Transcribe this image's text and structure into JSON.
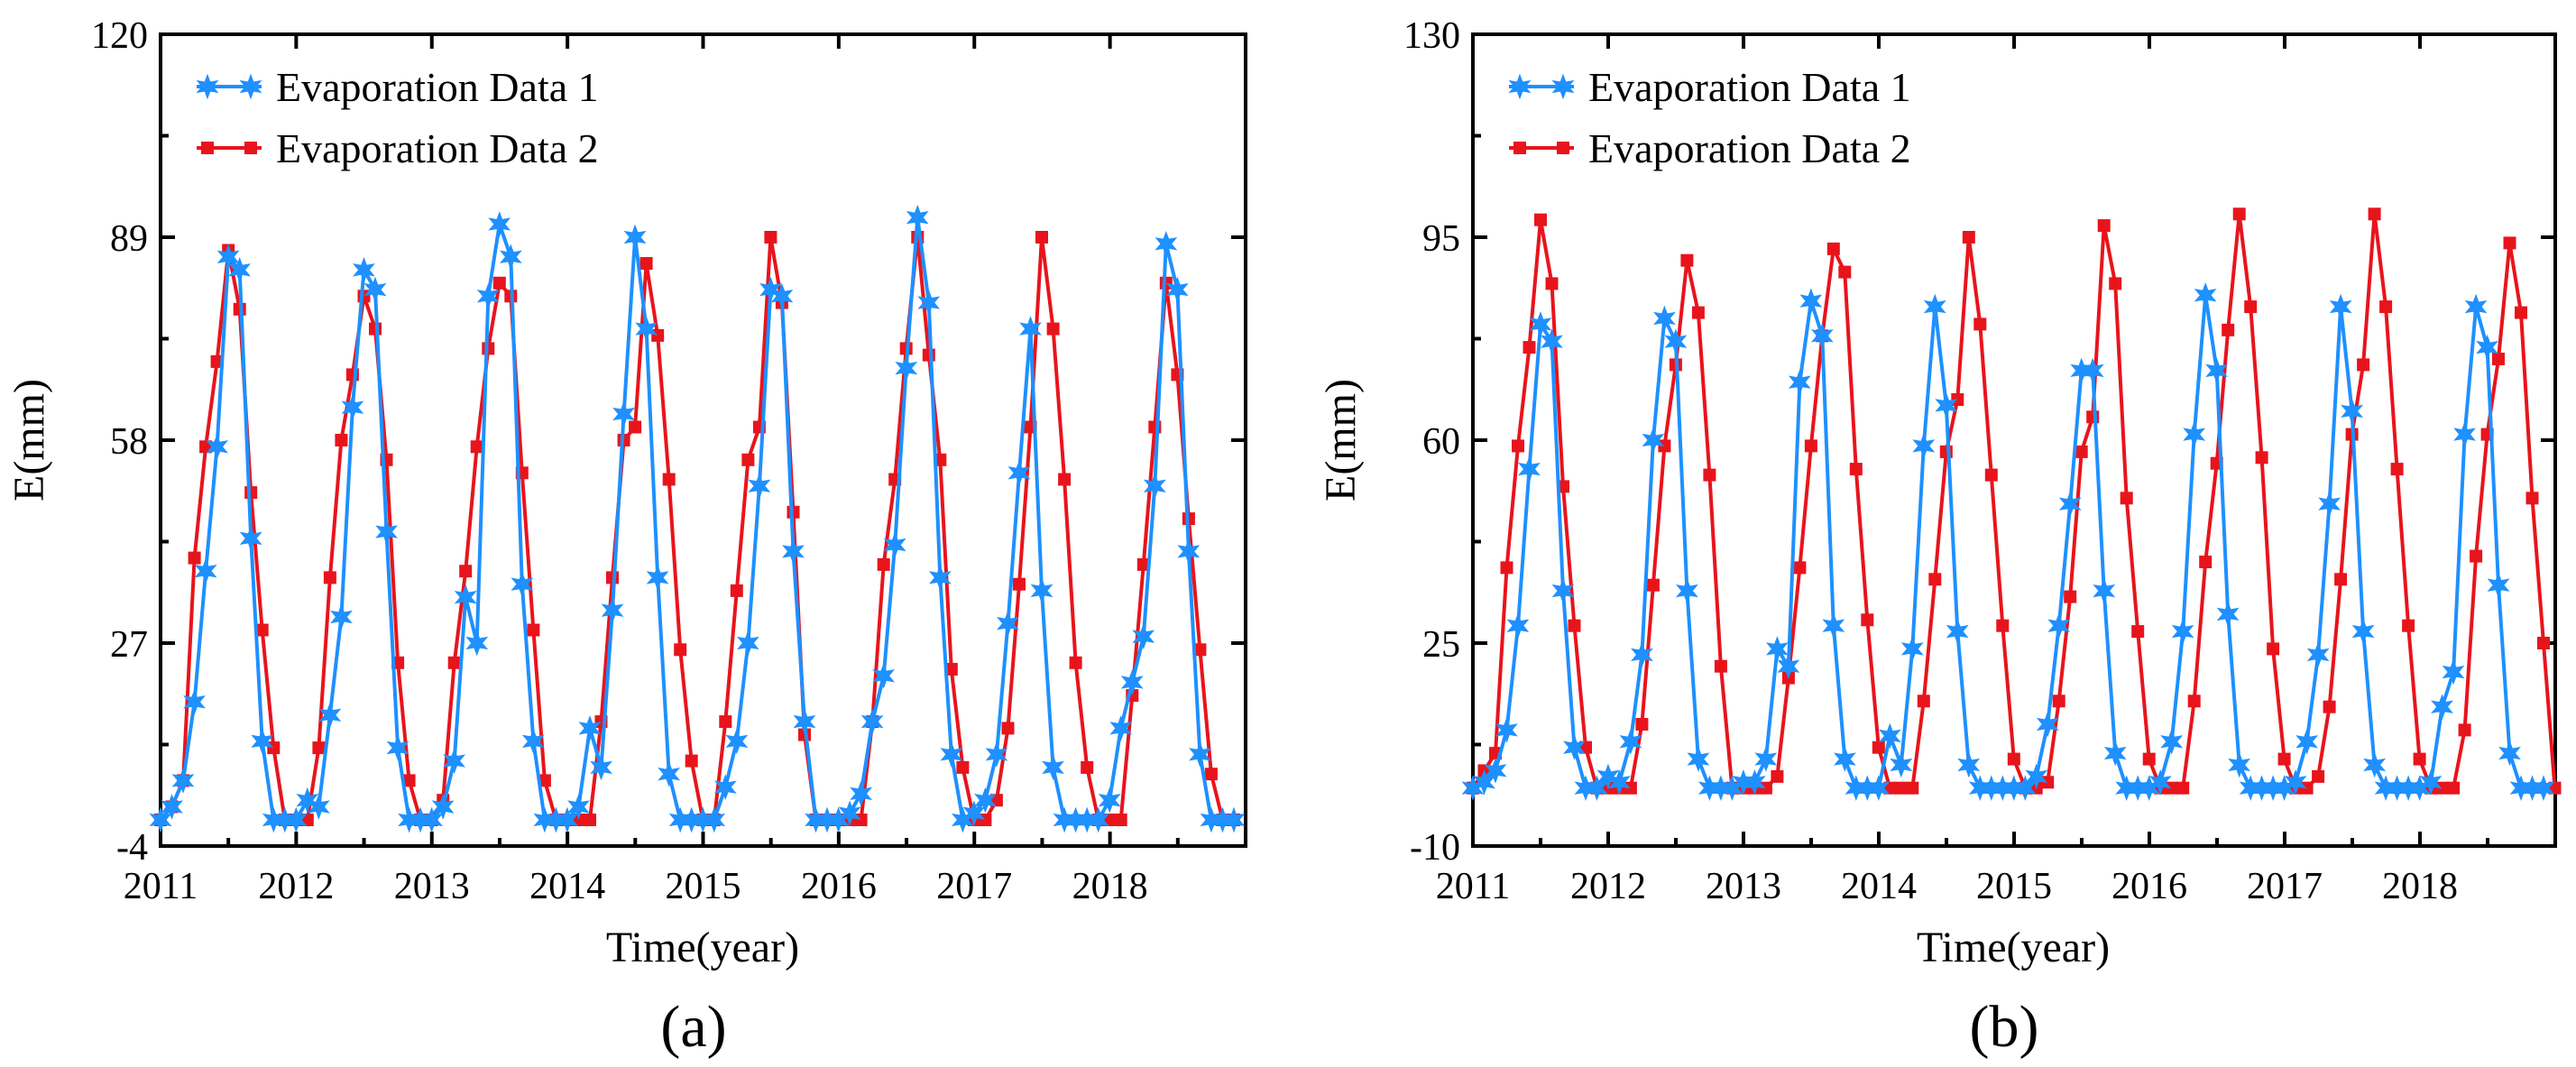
{
  "chart_data": [
    {
      "type": "line",
      "panel_label": "(a)",
      "xlabel": "Time(year)",
      "ylabel": "E(mm)",
      "ylim": [
        -4,
        120
      ],
      "yticks": [
        -4,
        27,
        58,
        89,
        120
      ],
      "xlim": [
        2011,
        2019
      ],
      "xticks": [
        2011,
        2012,
        2013,
        2014,
        2015,
        2016,
        2017,
        2018
      ],
      "legend_position": "top-left",
      "series": [
        {
          "name": "Evaporation Data 1",
          "color": "#1e90ff",
          "marker": "star",
          "values": [
            0,
            2,
            6,
            18,
            38,
            57,
            86,
            84,
            43,
            12,
            0,
            0,
            0,
            3,
            2,
            16,
            31,
            63,
            84,
            81,
            44,
            11,
            0,
            0,
            0,
            2,
            9,
            34,
            27,
            80,
            91,
            86,
            36,
            12,
            0,
            0,
            0,
            2,
            14,
            8,
            32,
            62,
            89,
            75,
            37,
            7,
            0,
            0,
            0,
            0,
            5,
            12,
            27,
            51,
            81,
            80,
            41,
            15,
            0,
            0,
            0,
            1,
            4,
            15,
            22,
            42,
            69,
            92,
            79,
            37,
            10,
            0,
            1,
            3,
            10,
            30,
            53,
            75,
            35,
            8,
            0,
            0,
            0,
            0,
            3,
            14,
            21,
            28,
            51,
            88,
            81,
            41,
            10,
            0,
            0,
            0
          ],
          "x_start": 2011.0,
          "x_step": 0.0833
        },
        {
          "name": "Evaporation Data 2",
          "color": "#e8141c",
          "marker": "square",
          "values": [
            0,
            2,
            6,
            40,
            57,
            70,
            87,
            78,
            50,
            29,
            11,
            0,
            0,
            0,
            11,
            37,
            58,
            68,
            80,
            75,
            55,
            24,
            6,
            0,
            0,
            3,
            24,
            38,
            57,
            72,
            82,
            80,
            53,
            29,
            6,
            0,
            0,
            0,
            0,
            15,
            37,
            58,
            60,
            85,
            74,
            52,
            26,
            9,
            0,
            0,
            15,
            35,
            55,
            60,
            89,
            79,
            47,
            13,
            0,
            0,
            0,
            0,
            0,
            15,
            39,
            52,
            72,
            89,
            71,
            55,
            23,
            8,
            0,
            0,
            3,
            14,
            36,
            60,
            89,
            75,
            52,
            24,
            8,
            0,
            0,
            0,
            19,
            39,
            60,
            82,
            68,
            46,
            26,
            7,
            0,
            0
          ],
          "x_start": 2011.0,
          "x_step": 0.0833
        }
      ]
    },
    {
      "type": "line",
      "panel_label": "(b)",
      "xlabel": "Time(year)",
      "ylabel": "E(mm)",
      "ylim": [
        -10,
        130
      ],
      "yticks": [
        -10,
        25,
        60,
        95,
        130
      ],
      "xlim": [
        2011,
        2019
      ],
      "xticks": [
        2011,
        2012,
        2013,
        2014,
        2015,
        2016,
        2017,
        2018
      ],
      "legend_position": "top-left",
      "series": [
        {
          "name": "Evaporation Data 1",
          "color": "#1e90ff",
          "marker": "star",
          "values": [
            0,
            1,
            3,
            10,
            28,
            55,
            80,
            77,
            34,
            7,
            0,
            0,
            2,
            1,
            8,
            23,
            60,
            81,
            77,
            34,
            5,
            0,
            0,
            0,
            1,
            1,
            5,
            24,
            21,
            70,
            84,
            78,
            28,
            5,
            0,
            0,
            0,
            9,
            4,
            24,
            59,
            83,
            66,
            27,
            4,
            0,
            0,
            0,
            0,
            0,
            2,
            11,
            28,
            49,
            72,
            72,
            34,
            6,
            0,
            0,
            0,
            1,
            8,
            27,
            61,
            85,
            72,
            30,
            4,
            0,
            0,
            0,
            0,
            1,
            8,
            23,
            49,
            83,
            65,
            27,
            4,
            0,
            0,
            0,
            0,
            1,
            14,
            20,
            61,
            83,
            76,
            35,
            6,
            0,
            0,
            0
          ],
          "x_start": 2011.0,
          "x_step": 0.0833
        },
        {
          "name": "Evaporation Data 2",
          "color": "#e8141c",
          "marker": "square",
          "values": [
            0,
            3,
            6,
            38,
            59,
            76,
            98,
            87,
            52,
            28,
            7,
            0,
            0,
            0,
            0,
            11,
            35,
            59,
            73,
            91,
            82,
            54,
            21,
            0,
            0,
            0,
            0,
            2,
            19,
            38,
            59,
            78,
            93,
            89,
            55,
            29,
            7,
            0,
            0,
            0,
            15,
            36,
            58,
            67,
            95,
            80,
            54,
            28,
            5,
            0,
            0,
            1,
            15,
            33,
            58,
            64,
            97,
            87,
            50,
            27,
            5,
            0,
            0,
            0,
            15,
            39,
            56,
            79,
            99,
            83,
            57,
            24,
            5,
            0,
            0,
            2,
            14,
            36,
            61,
            73,
            99,
            83,
            55,
            28,
            5,
            0,
            0,
            0,
            10,
            40,
            61,
            74,
            94,
            82,
            50,
            25,
            0
          ],
          "x_start": 2011.0,
          "x_step": 0.0833
        }
      ]
    }
  ]
}
